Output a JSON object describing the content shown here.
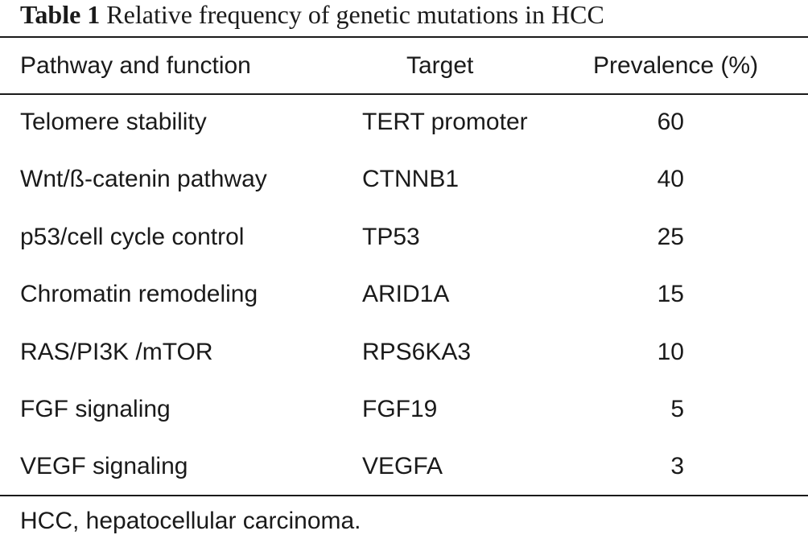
{
  "caption": {
    "label": "Table 1",
    "text": "Relative frequency of genetic mutations in HCC"
  },
  "table": {
    "headers": {
      "pathway": "Pathway and function",
      "target": "Target",
      "prevalence": "Prevalence (%)"
    },
    "rows": [
      {
        "pathway": "Telomere stability",
        "target": "TERT promoter",
        "prevalence": "60"
      },
      {
        "pathway": "Wnt/ß-catenin pathway",
        "target": "CTNNB1",
        "prevalence": "40"
      },
      {
        "pathway": "p53/cell cycle control",
        "target": "TP53",
        "prevalence": "25"
      },
      {
        "pathway": "Chromatin remodeling",
        "target": "ARID1A",
        "prevalence": "15"
      },
      {
        "pathway": "RAS/PI3K /mTOR",
        "target": "RPS6KA3",
        "prevalence": "10"
      },
      {
        "pathway": "FGF signaling",
        "target": "FGF19",
        "prevalence": "5"
      },
      {
        "pathway": "VEGF signaling",
        "target": "VEGFA",
        "prevalence": "3"
      }
    ]
  },
  "footnote": "HCC, hepatocellular carcinoma."
}
